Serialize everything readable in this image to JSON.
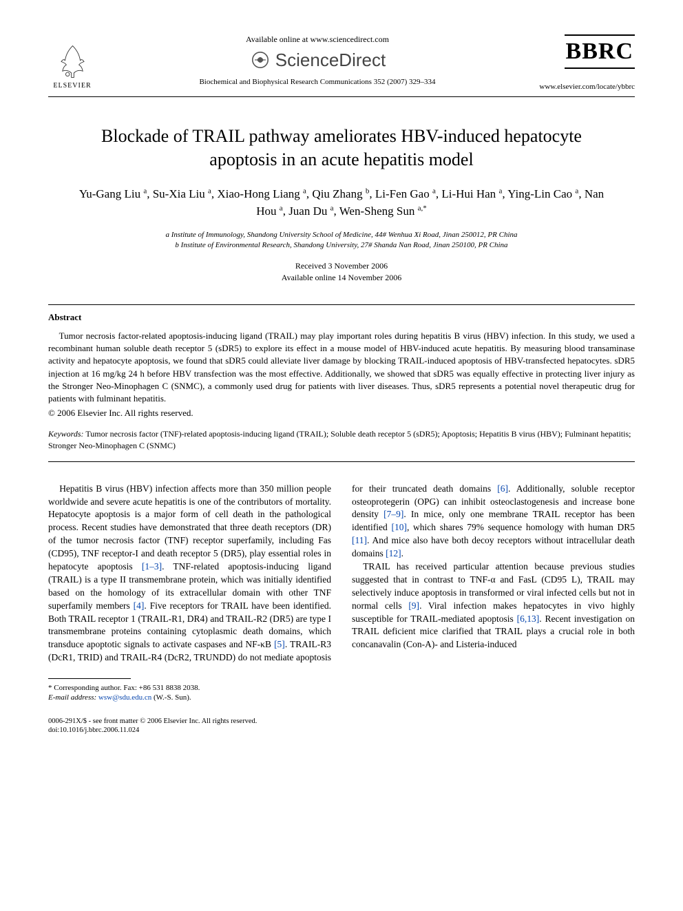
{
  "header": {
    "available_online": "Available online at www.sciencedirect.com",
    "sciencedirect": "ScienceDirect",
    "journal_ref": "Biochemical and Biophysical Research Communications 352 (2007) 329–334",
    "bbrc": "BBRC",
    "journal_url": "www.elsevier.com/locate/ybbrc",
    "elsevier": "ELSEVIER"
  },
  "title": "Blockade of TRAIL pathway ameliorates HBV-induced hepatocyte apoptosis in an acute hepatitis model",
  "authors_html": "Yu-Gang Liu <sup>a</sup>, Su-Xia Liu <sup>a</sup>, Xiao-Hong Liang <sup>a</sup>, Qiu Zhang <sup>b</sup>, Li-Fen Gao <sup>a</sup>, Li-Hui Han <sup>a</sup>, Ying-Lin Cao <sup>a</sup>, Nan Hou <sup>a</sup>, Juan Du <sup>a</sup>, Wen-Sheng Sun <sup>a,*</sup>",
  "affiliations": [
    "a Institute of Immunology, Shandong University School of Medicine, 44# Wenhua Xi Road, Jinan 250012, PR China",
    "b Institute of Environmental Research, Shandong University, 27# Shanda Nan Road, Jinan 250100, PR China"
  ],
  "dates": {
    "received": "Received 3 November 2006",
    "online": "Available online 14 November 2006"
  },
  "abstract": {
    "heading": "Abstract",
    "text": "Tumor necrosis factor-related apoptosis-inducing ligand (TRAIL) may play important roles during hepatitis B virus (HBV) infection. In this study, we used a recombinant human soluble death receptor 5 (sDR5) to explore its effect in a mouse model of HBV-induced acute hepatitis. By measuring blood transaminase activity and hepatocyte apoptosis, we found that sDR5 could alleviate liver damage by blocking TRAIL-induced apoptosis of HBV-transfected hepatocytes. sDR5 injection at 16 mg/kg 24 h before HBV transfection was the most effective. Additionally, we showed that sDR5 was equally effective in protecting liver injury as the Stronger Neo-Minophagen C (SNMC), a commonly used drug for patients with liver diseases. Thus, sDR5 represents a potential novel therapeutic drug for patients with fulminant hepatitis.",
    "copyright": "© 2006 Elsevier Inc. All rights reserved."
  },
  "keywords": {
    "label": "Keywords:",
    "text": "Tumor necrosis factor (TNF)-related apoptosis-inducing ligand (TRAIL); Soluble death receptor 5 (sDR5); Apoptosis; Hepatitis B virus (HBV); Fulminant hepatitis; Stronger Neo-Minophagen C (SNMC)"
  },
  "body": {
    "p1": "Hepatitis B virus (HBV) infection affects more than 350 million people worldwide and severe acute hepatitis is one of the contributors of mortality. Hepatocyte apoptosis is a major form of cell death in the pathological process. Recent studies have demonstrated that three death receptors (DR) of the tumor necrosis factor (TNF) receptor superfamily, including Fas (CD95), TNF receptor-I and death receptor 5 (DR5), play essential roles in hepatocyte apoptosis ",
    "ref1": "[1–3]",
    "p1b": ". TNF-related apoptosis-inducing ligand (TRAIL) is a type II transmembrane protein, which was initially identified based on the homology of its extracellular domain with other TNF superfamily members ",
    "ref2": "[4]",
    "p1c": ". Five receptors for TRAIL have been identified. Both TRAIL receptor 1 (TRAIL-R1, DR4) and TRAIL-R2 (DR5) are type I transmembrane proteins containing cytoplasmic death domains, which transduce apoptotic signals to activate caspases and NF-κB ",
    "ref3": "[5]",
    "p1d": ". TRAIL-R3 (DcR1, TRID) and TRAIL-R4 (DcR2, TRUNDD) do not mediate apoptosis for their truncated death domains ",
    "ref4": "[6]",
    "p1e": ". Additionally, soluble receptor osteoprotegerin (OPG) can inhibit osteoclastogenesis and increase bone density ",
    "ref5": "[7–9]",
    "p1f": ". In mice, only one membrane TRAIL receptor has been identified ",
    "ref6": "[10]",
    "p1g": ", which shares 79% sequence homology with human DR5 ",
    "ref7": "[11]",
    "p1h": ". And mice also have both decoy receptors without intracellular death domains ",
    "ref8": "[12]",
    "p1i": ".",
    "p2a": "TRAIL has received particular attention because previous studies suggested that in contrast to TNF-α and FasL (CD95 L), TRAIL may selectively induce apoptosis in transformed or viral infected cells but not in normal cells ",
    "ref9": "[9]",
    "p2b": ". Viral infection makes hepatocytes in vivo highly susceptible for TRAIL-mediated apoptosis ",
    "ref10": "[6,13]",
    "p2c": ". Recent investigation on TRAIL deficient mice clarified that TRAIL plays a crucial role in both concanavalin (Con-A)- and Listeria-induced"
  },
  "footnotes": {
    "corresponding": "* Corresponding author. Fax: +86 531 8838 2038.",
    "email_label": "E-mail address:",
    "email": "wsw@sdu.edu.cn",
    "email_name": "(W.-S. Sun)."
  },
  "footer": {
    "line1": "0006-291X/$ - see front matter © 2006 Elsevier Inc. All rights reserved.",
    "line2": "doi:10.1016/j.bbrc.2006.11.024"
  },
  "colors": {
    "link": "#0645ad",
    "text": "#000000",
    "bg": "#ffffff"
  }
}
